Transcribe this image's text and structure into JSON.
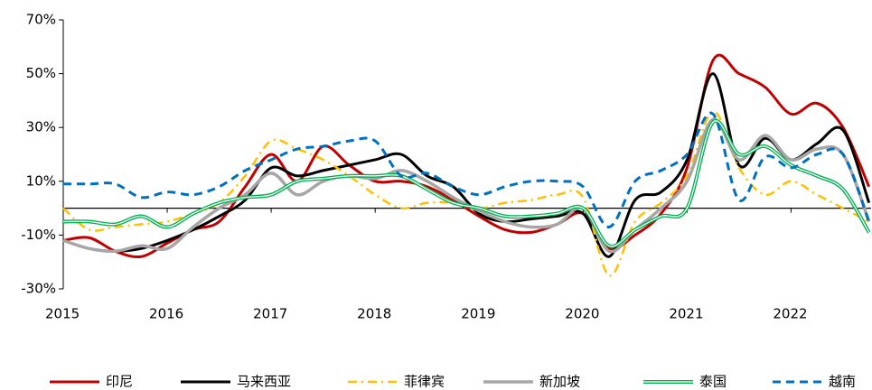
{
  "chart_data": {
    "type": "line",
    "x": [
      2015,
      2015.25,
      2015.5,
      2015.75,
      2016,
      2016.25,
      2016.5,
      2016.75,
      2017,
      2017.25,
      2017.5,
      2017.75,
      2018,
      2018.25,
      2018.5,
      2018.75,
      2019,
      2019.25,
      2019.5,
      2019.75,
      2020,
      2020.25,
      2020.5,
      2020.75,
      2021,
      2021.25,
      2021.5,
      2021.75,
      2022,
      2022.25,
      2022.5,
      2022.75
    ],
    "series": [
      {
        "name": "印尼",
        "color": "#c00000",
        "values": [
          -12,
          -11,
          -16,
          -18,
          -13,
          -8,
          -5,
          8,
          20,
          10,
          23,
          16,
          10,
          10,
          8,
          3,
          -3,
          -8,
          -9,
          -6,
          -2,
          -15,
          -10,
          -2,
          15,
          55,
          50,
          45,
          35,
          39,
          30,
          8
        ]
      },
      {
        "name": "马来西亚",
        "color": "#000000",
        "values": [
          -12,
          -15,
          -16,
          -15,
          -12,
          -8,
          -3,
          3,
          15,
          12,
          14,
          16,
          18,
          20,
          12,
          8,
          -2,
          -5,
          -4,
          -3,
          -2,
          -18,
          3,
          6,
          18,
          50,
          16,
          26,
          18,
          24,
          29,
          2
        ]
      },
      {
        "name": "菲律宾",
        "color": "#ffc000",
        "values": [
          0,
          -8,
          -7,
          -6,
          -5,
          -2,
          2,
          12,
          25,
          22,
          18,
          12,
          5,
          0,
          2,
          2,
          0,
          2,
          3,
          5,
          4,
          -25,
          -5,
          2,
          12,
          36,
          15,
          5,
          10,
          5,
          0,
          -5
        ]
      },
      {
        "name": "新加坡",
        "color": "#a6a6a6",
        "values": [
          -12,
          -15,
          -16,
          -14,
          -15,
          -7,
          0,
          5,
          13,
          5,
          10,
          12,
          11,
          14,
          10,
          4,
          -1,
          -5,
          -7,
          -6,
          0,
          -16,
          -8,
          0,
          10,
          33,
          18,
          27,
          18,
          22,
          20,
          -5
        ]
      },
      {
        "name": "泰国",
        "color": "#00b050",
        "values": [
          -5,
          -5,
          -6,
          -3,
          -7,
          -2,
          2,
          4,
          5,
          10,
          11,
          12,
          12,
          12,
          7,
          2,
          0,
          -3,
          -3,
          -2,
          0,
          -14,
          -8,
          -3,
          0,
          32,
          20,
          23,
          16,
          12,
          7,
          -9
        ]
      },
      {
        "name": "越南",
        "color": "#0070c0",
        "values": [
          9,
          9,
          9,
          4,
          6,
          5,
          8,
          14,
          18,
          22,
          23,
          25,
          25,
          12,
          13,
          8,
          5,
          8,
          10,
          10,
          8,
          -7,
          10,
          14,
          20,
          35,
          3,
          19,
          15,
          20,
          20,
          -5
        ]
      }
    ],
    "xlim": [
      2015,
      2022.77
    ],
    "xticks": [
      2015,
      2016,
      2017,
      2018,
      2019,
      2020,
      2021,
      2022
    ],
    "ylim": [
      -30,
      70
    ],
    "yticks": [
      {
        "value": -30,
        "label": "-30%"
      },
      {
        "value": -10,
        "label": "-10%"
      },
      {
        "value": 10,
        "label": "10%"
      },
      {
        "value": 30,
        "label": "30%"
      },
      {
        "value": 50,
        "label": "50%"
      },
      {
        "value": 70,
        "label": "70%"
      }
    ]
  }
}
